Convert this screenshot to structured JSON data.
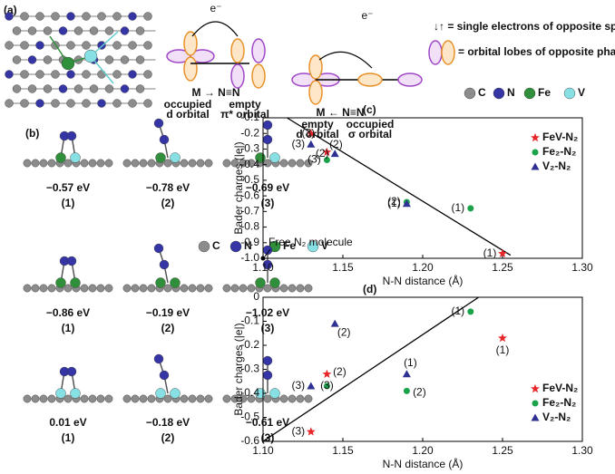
{
  "panel_a": {
    "label": "(a)",
    "transfer_1": {
      "electron": "e⁻",
      "reaction": "M → N≡N",
      "left": [
        "occupied",
        "d orbital"
      ],
      "right": [
        "empty",
        "π* orbital"
      ]
    },
    "transfer_2": {
      "electron": "e⁻",
      "reaction": "M ← N≡N",
      "left": [
        "empty",
        "d orbital"
      ],
      "right": [
        "occupied",
        "σ orbital"
      ]
    },
    "key": [
      "↓↑ = single electrons of opposite spin",
      "= orbital lobes of opposite phase"
    ],
    "atoms": [
      "C",
      "N",
      "Fe",
      "V"
    ]
  },
  "panel_b": {
    "label": "(b)",
    "atoms": [
      "C",
      "N",
      "Fe",
      "V"
    ],
    "structures": [
      {
        "energy": "−0.57 eV",
        "index": "(1)"
      },
      {
        "energy": "−0.78 eV",
        "index": "(2)"
      },
      {
        "energy": "−0.69 eV",
        "index": "(3)"
      },
      {
        "energy": "−0.86 eV",
        "index": "(1)"
      },
      {
        "energy": "−0.19 eV",
        "index": "(2)"
      },
      {
        "energy": "−1.02 eV",
        "index": "(3)"
      },
      {
        "energy": "0.01 eV",
        "index": "(1)"
      },
      {
        "energy": "−0.18 eV",
        "index": "(2)"
      },
      {
        "energy": "−0.61 eV",
        "index": "(3)"
      }
    ]
  },
  "chart_data": [
    {
      "type": "scatter",
      "panel_label": "(c)",
      "xlabel": "N-N distance (Å)",
      "ylabel": "Bader charges (|e|)",
      "xlim": [
        1.1,
        1.3
      ],
      "ylim": [
        -1.0,
        -0.1
      ],
      "xticks": [
        {
          "value": 1.1,
          "label": "1.10"
        },
        1.15,
        {
          "value": 1.2,
          "label": "1.20"
        },
        1.25,
        {
          "value": 1.3,
          "label": "1.30"
        }
      ],
      "yticks": [
        -0.1,
        -0.2,
        -0.3,
        -0.4,
        -0.5,
        -0.6,
        -0.7,
        -0.8,
        -0.9,
        {
          "value": -1.0,
          "label": "-1.0"
        }
      ],
      "legend": "upper right",
      "series": [
        {
          "name": "FeV-N₂",
          "color": "#e8262a",
          "marker": "star",
          "x": [
            1.25,
            1.14,
            1.13
          ],
          "values": [
            -0.97,
            -0.32,
            -0.2
          ],
          "labels": [
            "(1)",
            "(2)",
            "(3)"
          ]
        },
        {
          "name": "Fe₂-N₂",
          "color": "#1aa34a",
          "marker": "circle",
          "x": [
            1.23,
            1.19,
            1.14
          ],
          "values": [
            -0.68,
            -0.64,
            -0.37
          ],
          "labels": [
            "(1)",
            "(2)",
            "(3)"
          ]
        },
        {
          "name": "V₂-N₂",
          "color": "#2e3192",
          "marker": "triangle",
          "x": [
            1.19,
            1.145,
            1.13
          ],
          "values": [
            -0.65,
            -0.33,
            -0.27
          ],
          "labels": [
            "(1)",
            "(2)",
            "(3)"
          ]
        }
      ],
      "trend_line": {
        "x": [
          1.115,
          1.255
        ],
        "y": [
          -0.1,
          -0.98
        ]
      },
      "annotation": {
        "text": "Free N₂ molecule",
        "x": 1.1,
        "y": -1.0
      }
    },
    {
      "type": "scatter",
      "panel_label": "(d)",
      "xlabel": "N-N distance (Å)",
      "ylabel": "Bader charges (|e|)",
      "xlim": [
        1.1,
        1.3
      ],
      "ylim": [
        -0.6,
        0
      ],
      "xticks": [
        {
          "value": 1.1,
          "label": "1.10"
        },
        1.15,
        {
          "value": 1.2,
          "label": "1.20"
        },
        1.25,
        {
          "value": 1.3,
          "label": "1.30"
        }
      ],
      "yticks": [
        0,
        -0.1,
        -0.2,
        -0.3,
        -0.4,
        -0.5,
        -0.6
      ],
      "legend": "lower right",
      "series": [
        {
          "name": "FeV-N₂",
          "color": "#e8262a",
          "marker": "star",
          "x": [
            1.25,
            1.14,
            1.13
          ],
          "values": [
            -0.17,
            -0.32,
            -0.56
          ],
          "labels": [
            "(1)",
            "(2)",
            "(3)"
          ]
        },
        {
          "name": "Fe₂-N₂",
          "color": "#1aa34a",
          "marker": "circle",
          "x": [
            1.23,
            1.19,
            1.14
          ],
          "values": [
            -0.06,
            -0.39,
            -0.37
          ],
          "labels": [
            "(1)",
            "(2)",
            "(3)"
          ]
        },
        {
          "name": "V₂-N₂",
          "color": "#2e3192",
          "marker": "triangle",
          "x": [
            1.19,
            1.145,
            1.13
          ],
          "values": [
            -0.32,
            -0.11,
            -0.37
          ],
          "labels": [
            "(1)",
            "(2)",
            "(3)"
          ]
        }
      ],
      "trend_line": {
        "x": [
          1.1,
          1.235
        ],
        "y": [
          -0.6,
          0
        ]
      }
    }
  ]
}
